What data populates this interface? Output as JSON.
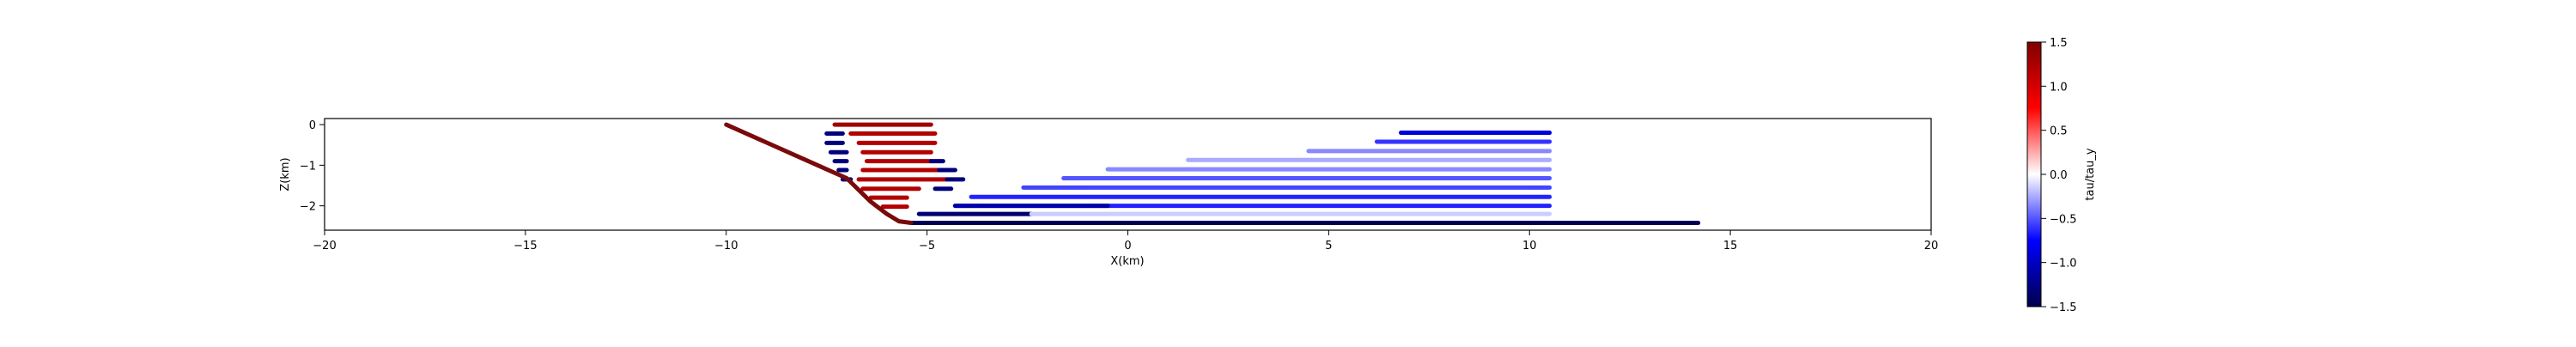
{
  "chart_data": {
    "type": "line",
    "title": "",
    "xlabel": "X(km)",
    "ylabel": "Z(km)",
    "xlim": [
      -20,
      20
    ],
    "ylim": [
      -2.6,
      0.15
    ],
    "xticks": [
      "−20",
      "−15",
      "−10",
      "−5",
      "0",
      "5",
      "10",
      "15",
      "20"
    ],
    "xtick_values": [
      -20,
      -15,
      -10,
      -5,
      0,
      5,
      10,
      15,
      20
    ],
    "yticks": [
      "0",
      "−1",
      "−2"
    ],
    "ytick_values": [
      0,
      -1,
      -2
    ],
    "grid": false,
    "colorbar": {
      "label": "tau/tau_y",
      "range": [
        -1.5,
        1.5
      ],
      "ticks": [
        "1.5",
        "1.0",
        "0.5",
        "0.0",
        "−0.5",
        "−1.0",
        "−1.5"
      ],
      "tick_values": [
        1.5,
        1.0,
        0.5,
        0.0,
        -0.5,
        -1.0,
        -1.5
      ],
      "cmap": "seismic"
    },
    "fault": {
      "color": "#7a0a0a",
      "points": [
        [
          -10,
          0
        ],
        [
          -9,
          -0.44
        ],
        [
          -8,
          -0.88
        ],
        [
          -7,
          -1.32
        ],
        [
          -6.4,
          -1.9
        ],
        [
          -6,
          -2.2
        ],
        [
          -5.7,
          -2.38
        ],
        [
          -5.4,
          -2.42
        ]
      ]
    },
    "detachment": {
      "color": "#000055",
      "points": [
        [
          -5.4,
          -2.42
        ],
        [
          14.2,
          -2.42
        ]
      ]
    },
    "series": [
      {
        "z": 0.0,
        "x": [
          -7.3,
          -4.9
        ],
        "value": 1.3
      },
      {
        "z": -0.22,
        "x": [
          -6.9,
          -4.8
        ],
        "value": 1.2
      },
      {
        "z": -0.45,
        "x": [
          -6.7,
          -4.8
        ],
        "value": 1.2
      },
      {
        "z": -0.68,
        "x": [
          -6.6,
          -4.9
        ],
        "value": 1.2
      },
      {
        "z": -0.9,
        "x": [
          -6.5,
          -4.9
        ],
        "value": 1.2
      },
      {
        "z": -1.12,
        "x": [
          -6.6,
          -4.7
        ],
        "value": 1.2
      },
      {
        "z": -1.35,
        "x": [
          -6.7,
          -4.5
        ],
        "value": 1.2
      },
      {
        "z": -1.58,
        "x": [
          -6.6,
          -5.2
        ],
        "value": 1.2
      },
      {
        "z": -1.8,
        "x": [
          -6.4,
          -5.5
        ],
        "value": 1.2
      },
      {
        "z": -2.02,
        "x": [
          -6.1,
          -5.5
        ],
        "value": 1.2
      },
      {
        "z": -0.22,
        "x": [
          -7.5,
          -7.1
        ],
        "value": -1.3
      },
      {
        "z": -0.45,
        "x": [
          -7.5,
          -7.1
        ],
        "value": -1.3
      },
      {
        "z": -0.68,
        "x": [
          -7.4,
          -7.0
        ],
        "value": -1.3
      },
      {
        "z": -0.9,
        "x": [
          -7.3,
          -7.0
        ],
        "value": -1.3
      },
      {
        "z": -1.12,
        "x": [
          -7.2,
          -7.0
        ],
        "value": -1.3
      },
      {
        "z": -1.35,
        "x": [
          -7.1,
          -6.9
        ],
        "value": -1.3
      },
      {
        "z": -0.9,
        "x": [
          -4.9,
          -4.6
        ],
        "value": -1.3
      },
      {
        "z": -1.12,
        "x": [
          -4.7,
          -4.3
        ],
        "value": -1.3
      },
      {
        "z": -1.35,
        "x": [
          -4.5,
          -4.1
        ],
        "value": -1.3
      },
      {
        "z": -1.58,
        "x": [
          -4.8,
          -4.4
        ],
        "value": -1.3
      },
      {
        "z": -0.2,
        "x": [
          6.8,
          10.5
        ],
        "value": -0.9
      },
      {
        "z": -0.42,
        "x": [
          6.2,
          10.5
        ],
        "value": -0.6
      },
      {
        "z": -0.65,
        "x": [
          4.5,
          10.5
        ],
        "value": -0.35
      },
      {
        "z": -0.87,
        "x": [
          1.5,
          10.5
        ],
        "value": -0.25
      },
      {
        "z": -1.1,
        "x": [
          -0.5,
          10.5
        ],
        "value": -0.35
      },
      {
        "z": -1.32,
        "x": [
          -1.6,
          10.5
        ],
        "value": -0.5
      },
      {
        "z": -1.55,
        "x": [
          -2.6,
          10.5
        ],
        "value": -0.55
      },
      {
        "z": -1.78,
        "x": [
          -3.9,
          10.5
        ],
        "value": -0.65
      },
      {
        "z": -2.0,
        "x": [
          -4.3,
          10.5
        ],
        "value": -0.65
      },
      {
        "z": -2.2,
        "x": [
          -5.2,
          -2.4
        ],
        "value": -1.35
      },
      {
        "z": -2.2,
        "x": [
          -2.4,
          10.5
        ],
        "value": -0.15
      },
      {
        "z": -2.0,
        "x": [
          -4.3,
          -0.5
        ],
        "value": -1.1
      }
    ]
  }
}
